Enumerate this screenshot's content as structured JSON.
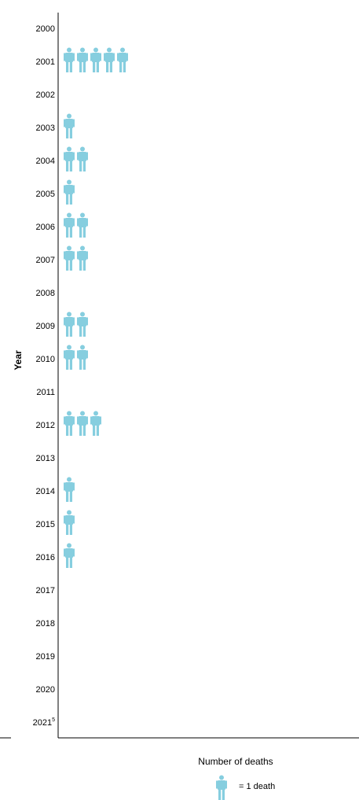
{
  "chart_data": {
    "type": "pictograph",
    "ylabel": "Year",
    "xlabel": "Number of deaths",
    "categories": [
      "2000",
      "2001",
      "2002",
      "2003",
      "2004",
      "2005",
      "2006",
      "2007",
      "2008",
      "2009",
      "2010",
      "2011",
      "2012",
      "2013",
      "2014",
      "2015",
      "2016",
      "2017",
      "2018",
      "2019",
      "2020",
      "2021"
    ],
    "category_notes": {
      "2021": "5"
    },
    "values": [
      0,
      5,
      0,
      1,
      2,
      1,
      2,
      2,
      0,
      2,
      2,
      0,
      3,
      0,
      1,
      1,
      1,
      0,
      0,
      0,
      0,
      0
    ],
    "icon": "person-icon",
    "icon_color": "#86CEDF",
    "legend": {
      "label": "= 1 death"
    }
  }
}
